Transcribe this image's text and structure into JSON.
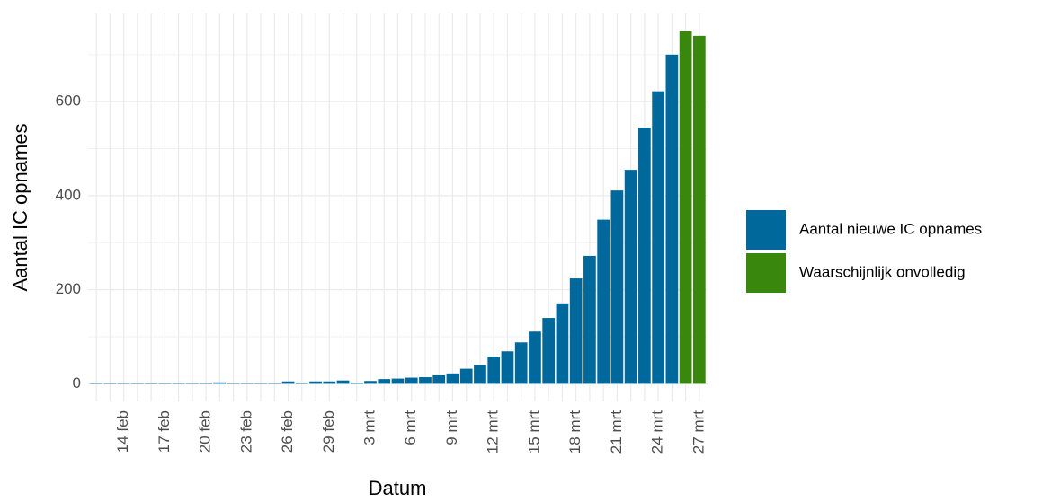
{
  "chart_data": {
    "type": "bar",
    "x_label": "Datum",
    "y_label": "Aantal IC opnames",
    "categories": [
      null,
      null,
      "14 feb",
      null,
      null,
      "17 feb",
      null,
      null,
      "20 feb",
      null,
      null,
      "23 feb",
      null,
      null,
      "26 feb",
      null,
      null,
      "29 feb",
      null,
      null,
      "3 mrt",
      null,
      null,
      "6 mrt",
      null,
      null,
      "9 mrt",
      null,
      null,
      "12 mrt",
      null,
      null,
      "15 mrt",
      null,
      null,
      "18 mrt",
      null,
      null,
      "21 mrt",
      null,
      null,
      "24 mrt",
      null,
      null,
      "27 mrt"
    ],
    "series": [
      {
        "name": "Aantal nieuwe IC opnames",
        "color": "#01689b",
        "values": [
          1,
          1,
          1,
          1,
          1,
          1,
          1,
          1,
          1,
          3,
          1,
          1,
          1,
          1,
          5,
          2,
          5,
          5,
          7,
          2,
          6,
          10,
          11,
          13,
          14,
          18,
          22,
          32,
          40,
          58,
          69,
          88,
          111,
          140,
          171,
          224,
          272,
          349,
          411,
          455,
          545,
          622,
          700,
          null,
          null
        ]
      },
      {
        "name": "Waarschijnlijk onvolledig",
        "color": "#39870c",
        "values": [
          null,
          null,
          null,
          null,
          null,
          null,
          null,
          null,
          null,
          null,
          null,
          null,
          null,
          null,
          null,
          null,
          null,
          null,
          null,
          null,
          null,
          null,
          null,
          null,
          null,
          null,
          null,
          null,
          null,
          null,
          null,
          null,
          null,
          null,
          null,
          null,
          null,
          null,
          null,
          null,
          null,
          null,
          null,
          750,
          740
        ]
      }
    ],
    "ylim": [
      -37.5,
      787.5
    ],
    "yticks": [
      0,
      200,
      400,
      600
    ],
    "grid": true,
    "legend": "right"
  }
}
